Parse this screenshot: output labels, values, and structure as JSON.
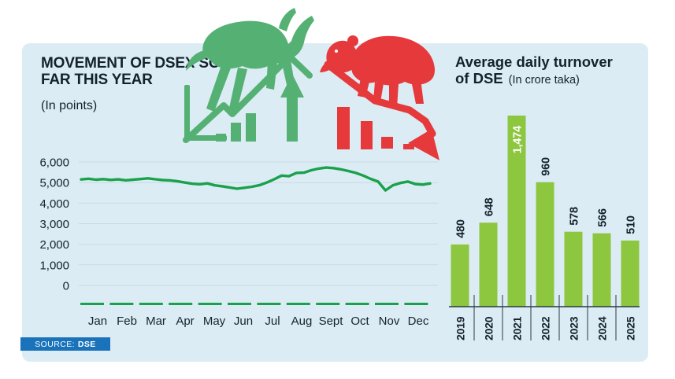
{
  "colors": {
    "panel_bg": "#dcecf5",
    "ink": "#14222c",
    "grid": "#c6d9e2",
    "axis": "#2a3a44",
    "line_green": "#1aa14b",
    "bar_green": "#8dc63f",
    "bull_green": "#55b173",
    "bear_red": "#e6393b",
    "badge_blue": "#1a73ba",
    "bar_label_inside": "#ffffff"
  },
  "left_title": {
    "line1": "MOVEMENT OF DSEX SO",
    "line2": "FAR THIS YEAR",
    "subtitle": "(In points)"
  },
  "right_title": {
    "line1": "Average daily turnover",
    "line2_bold": "of DSE",
    "line2_note": "(In crore taka)"
  },
  "source": {
    "label": "SOURCE:",
    "value": "DSE"
  },
  "icons": {
    "bull": "bull-market-icon",
    "bear": "bear-market-icon"
  },
  "chart_data": [
    {
      "type": "line",
      "title": "MOVEMENT OF DSEX SO FAR THIS YEAR",
      "subtitle": "(In points)",
      "x_labels": [
        "Jan",
        "Feb",
        "Mar",
        "Apr",
        "May",
        "Jun",
        "Jul",
        "Aug",
        "Sept",
        "Oct",
        "Nov",
        "Dec"
      ],
      "y_ticks": [
        "6,000",
        "5,000",
        "4,000",
        "3,000",
        "2,000",
        "1,000",
        "0"
      ],
      "ylim": [
        0,
        6000
      ],
      "grid": true,
      "legend": "none",
      "line_color": "#1aa14b",
      "values": [
        5150,
        5185,
        5140,
        5165,
        5130,
        5155,
        5110,
        5140,
        5170,
        5205,
        5160,
        5120,
        5105,
        5060,
        5000,
        4940,
        4920,
        4960,
        4865,
        4820,
        4760,
        4700,
        4745,
        4795,
        4870,
        5000,
        5160,
        5340,
        5310,
        5470,
        5480,
        5600,
        5680,
        5730,
        5700,
        5640,
        5560,
        5470,
        5340,
        5180,
        5050,
        4620,
        4870,
        4980,
        5050,
        4930,
        4900,
        4955
      ]
    },
    {
      "type": "bar",
      "title": "Average daily turnover of DSE",
      "subtitle": "(In crore taka)",
      "categories": [
        "2019",
        "2020",
        "2021",
        "2022",
        "2023",
        "2024",
        "2025"
      ],
      "values": [
        480,
        648,
        1474,
        960,
        578,
        566,
        510
      ],
      "labels": [
        "480",
        "648",
        "1,474",
        "960",
        "578",
        "566",
        "510"
      ],
      "label_placement": [
        "out",
        "out",
        "in",
        "out",
        "out",
        "out",
        "out"
      ],
      "ylim": [
        0,
        1500
      ],
      "grid": false,
      "legend": "none",
      "bar_color": "#8dc63f"
    }
  ]
}
